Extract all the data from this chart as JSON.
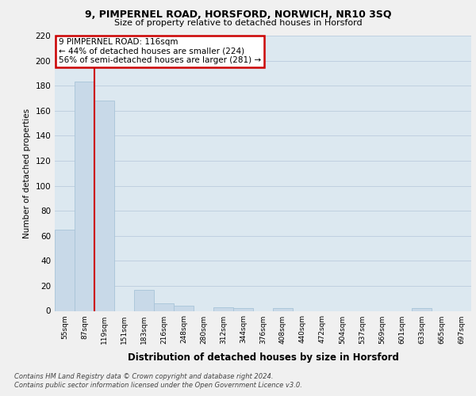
{
  "title1": "9, PIMPERNEL ROAD, HORSFORD, NORWICH, NR10 3SQ",
  "title2": "Size of property relative to detached houses in Horsford",
  "xlabel": "Distribution of detached houses by size in Horsford",
  "ylabel": "Number of detached properties",
  "annotation_line1": "9 PIMPERNEL ROAD: 116sqm",
  "annotation_line2": "← 44% of detached houses are smaller (224)",
  "annotation_line3": "56% of semi-detached houses are larger (281) →",
  "categories": [
    "55sqm",
    "87sqm",
    "119sqm",
    "151sqm",
    "183sqm",
    "216sqm",
    "248sqm",
    "280sqm",
    "312sqm",
    "344sqm",
    "376sqm",
    "408sqm",
    "440sqm",
    "472sqm",
    "504sqm",
    "537sqm",
    "569sqm",
    "601sqm",
    "633sqm",
    "665sqm",
    "697sqm"
  ],
  "values": [
    65,
    183,
    168,
    0,
    17,
    6,
    4,
    0,
    3,
    2,
    0,
    2,
    0,
    0,
    0,
    0,
    0,
    0,
    2,
    0,
    0
  ],
  "bar_color": "#c8d9e8",
  "bar_edge_color": "#a8c4d8",
  "vline_color": "#cc0000",
  "vline_x": 1.5,
  "annotation_box_color": "#cc0000",
  "annotation_fill_color": "#ffffff",
  "grid_color": "#c0d0e0",
  "background_color": "#dce8f0",
  "fig_background": "#f0f0f0",
  "ylim": [
    0,
    220
  ],
  "yticks": [
    0,
    20,
    40,
    60,
    80,
    100,
    120,
    140,
    160,
    180,
    200,
    220
  ],
  "footer1": "Contains HM Land Registry data © Crown copyright and database right 2024.",
  "footer2": "Contains public sector information licensed under the Open Government Licence v3.0."
}
